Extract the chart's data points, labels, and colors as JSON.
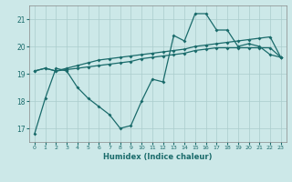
{
  "xlabel": "Humidex (Indice chaleur)",
  "bg_color": "#cce8e8",
  "line_color": "#1a6b6b",
  "grid_color": "#aacccc",
  "ylim": [
    16.5,
    21.5
  ],
  "xlim": [
    -0.5,
    23.5
  ],
  "yticks": [
    17,
    18,
    19,
    20,
    21
  ],
  "xticks": [
    0,
    1,
    2,
    3,
    4,
    5,
    6,
    7,
    8,
    9,
    10,
    11,
    12,
    13,
    14,
    15,
    16,
    17,
    18,
    19,
    20,
    21,
    22,
    23
  ],
  "series1": [
    16.8,
    18.1,
    19.2,
    19.1,
    18.5,
    18.1,
    17.8,
    17.5,
    17.0,
    17.1,
    18.0,
    18.8,
    18.7,
    20.4,
    20.2,
    21.2,
    21.2,
    20.6,
    20.6,
    20.0,
    20.1,
    20.0,
    19.7,
    19.6
  ],
  "series2": [
    19.1,
    19.2,
    19.1,
    19.15,
    19.2,
    19.25,
    19.3,
    19.35,
    19.4,
    19.45,
    19.55,
    19.6,
    19.65,
    19.7,
    19.75,
    19.85,
    19.9,
    19.95,
    19.95,
    19.95,
    19.95,
    19.95,
    19.95,
    19.6
  ],
  "series3": [
    19.1,
    19.2,
    19.1,
    19.2,
    19.3,
    19.4,
    19.5,
    19.55,
    19.6,
    19.65,
    19.7,
    19.75,
    19.8,
    19.85,
    19.9,
    20.0,
    20.05,
    20.1,
    20.15,
    20.2,
    20.25,
    20.3,
    20.35,
    19.6
  ]
}
